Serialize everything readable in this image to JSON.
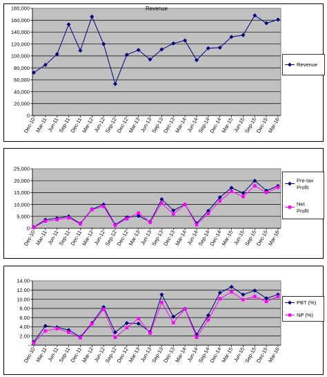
{
  "chart_data": [
    {
      "type": "line",
      "title": "Revenue",
      "categories": [
        "Dec-10",
        "Mar-11",
        "Jun-11",
        "Sep-11",
        "Dec-11",
        "Mar-12",
        "Jun-12",
        "Sep-12",
        "Dec-12",
        "Mar-13",
        "Jun-13",
        "Sep-13",
        "Dec-13",
        "Mar-14",
        "Jun-14",
        "Sep-14",
        "Dec-14",
        "Mar-15",
        "Jun-15",
        "Sep-15",
        "Dec-15",
        "Mar-16"
      ],
      "y_ticks": [
        "0",
        "20,000",
        "40,000",
        "60,000",
        "80,000",
        "100,000",
        "120,000",
        "140,000",
        "160,000",
        "180,000"
      ],
      "ylim": [
        0,
        180000
      ],
      "grid": true,
      "legend_position": "right",
      "series": [
        {
          "name": "Revenue",
          "color": "#000080",
          "marker": "diamond",
          "values": [
            72000,
            85000,
            103000,
            153000,
            109000,
            166000,
            120000,
            53000,
            102000,
            110000,
            94000,
            111000,
            121000,
            126000,
            93000,
            113000,
            114000,
            132000,
            135000,
            168000,
            155000,
            161000
          ]
        }
      ]
    },
    {
      "type": "line",
      "title": "",
      "categories": [
        "Dec-10",
        "Mar-11",
        "Jun-11",
        "Sep-11",
        "Dec-11",
        "Mar-12",
        "Jun-12",
        "Sep-12",
        "Dec-12",
        "Mar-13",
        "Jun-13",
        "Sep-13",
        "Dec-13",
        "Mar-14",
        "Jun-14",
        "Sep-14",
        "Dec-14",
        "Mar-15",
        "Jun-15",
        "Sep-15",
        "Dec-15",
        "Mar-16"
      ],
      "y_ticks": [
        "0",
        "5,000",
        "10,000",
        "15,000",
        "20,000",
        "25,000"
      ],
      "ylim": [
        0,
        25000
      ],
      "grid": true,
      "legend_position": "right",
      "series": [
        {
          "name": "Pre-tax Profit",
          "color": "#000080",
          "marker": "diamond",
          "values": [
            500,
            3600,
            4200,
            5000,
            2000,
            8000,
            10000,
            1500,
            4600,
            5200,
            2700,
            12200,
            7500,
            10000,
            2100,
            7300,
            13000,
            17000,
            14800,
            20000,
            15800,
            17800
          ]
        },
        {
          "name": "Net Profit",
          "color": "#ff00ff",
          "marker": "square",
          "values": [
            400,
            3000,
            3600,
            4400,
            1800,
            7800,
            9200,
            1200,
            4000,
            6400,
            2500,
            10500,
            6000,
            10000,
            1500,
            6200,
            11500,
            15500,
            13300,
            17800,
            15000,
            17200
          ]
        }
      ]
    },
    {
      "type": "line",
      "title": "",
      "categories": [
        "Dec-10",
        "Mar-11",
        "Jun-11",
        "Sep-11",
        "Dec-11",
        "Mar-12",
        "Jun-12",
        "Sep-12",
        "Dec-12",
        "Mar-13",
        "Jun-13",
        "Sep-13",
        "Dec-13",
        "Mar-14",
        "Jun-14",
        "Sep-14",
        "Dec-14",
        "Mar-15",
        "Jun-15",
        "Sep-15",
        "Dec-15",
        "Mar-16"
      ],
      "y_ticks": [
        "-",
        "2.00",
        "4.00",
        "6.00",
        "8.00",
        "10.00",
        "12.00",
        "14.00"
      ],
      "ylim": [
        0,
        14
      ],
      "grid": true,
      "legend_position": "right",
      "series": [
        {
          "name": "PBT (%)",
          "color": "#000080",
          "marker": "diamond",
          "values": [
            0.7,
            4.2,
            3.9,
            3.3,
            1.8,
            4.8,
            8.3,
            2.8,
            4.8,
            4.7,
            2.9,
            11.0,
            6.2,
            7.9,
            2.3,
            6.5,
            11.4,
            12.7,
            11.0,
            11.9,
            10.2,
            11.0
          ]
        },
        {
          "name": "NP (%)",
          "color": "#ff00ff",
          "marker": "square",
          "values": [
            0.5,
            3.1,
            3.6,
            2.8,
            1.6,
            4.6,
            7.8,
            1.7,
            3.8,
            5.8,
            2.6,
            9.3,
            4.9,
            7.9,
            1.7,
            5.5,
            10.1,
            11.6,
            9.9,
            10.6,
            9.5,
            10.6
          ]
        }
      ]
    }
  ]
}
